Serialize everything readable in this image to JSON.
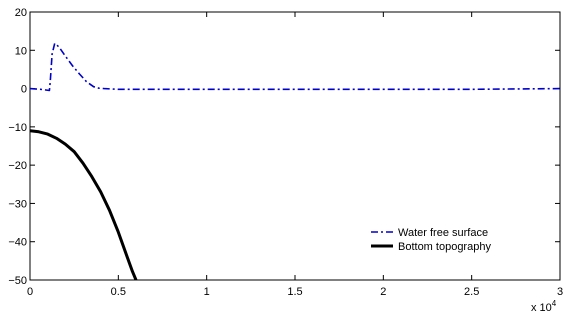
{
  "chart_data": {
    "type": "line",
    "title": "",
    "xlabel": "",
    "ylabel": "",
    "xlim": [
      0,
      30000
    ],
    "ylim": [
      -50,
      20
    ],
    "x_multiplier_label": {
      "base": "x 10",
      "exponent": "4"
    },
    "x_ticks": [
      0,
      5000,
      10000,
      15000,
      20000,
      25000,
      30000
    ],
    "x_tick_labels": [
      "0",
      "0.5",
      "1",
      "1.5",
      "2",
      "2.5",
      "3"
    ],
    "y_ticks": [
      -50,
      -40,
      -30,
      -20,
      -10,
      0,
      10,
      20
    ],
    "y_tick_labels": [
      "−50",
      "−40",
      "−30",
      "−20",
      "−10",
      "0",
      "10",
      "20"
    ],
    "grid": false,
    "legend_position": "bottom-right",
    "series": [
      {
        "name": "Water free surface",
        "color": "#0000cc",
        "line_style": "dash-dot",
        "x": [
          0,
          600,
          1100,
          1150,
          1250,
          1400,
          1500,
          1700,
          2000,
          2400,
          2800,
          3200,
          3600,
          3900,
          4200,
          5000,
          6000,
          8000,
          10000,
          15000,
          20000,
          25000,
          30000
        ],
        "y": [
          0,
          -0.2,
          -0.5,
          2,
          9,
          11.8,
          11.5,
          10.5,
          8.5,
          6,
          3.8,
          1.8,
          0.5,
          0.1,
          0,
          -0.2,
          -0.2,
          -0.2,
          -0.2,
          -0.2,
          -0.2,
          -0.2,
          0
        ]
      },
      {
        "name": "Bottom topography",
        "color": "#000000",
        "line_style": "solid",
        "x": [
          0,
          500,
          1000,
          1500,
          2000,
          2500,
          3000,
          3500,
          4000,
          4500,
          5000,
          5500,
          5800,
          6000
        ],
        "y": [
          -11,
          -11.3,
          -11.9,
          -13,
          -14.5,
          -16.5,
          -19.5,
          -23,
          -27,
          -31.8,
          -37.5,
          -44,
          -47.8,
          -50
        ]
      }
    ]
  }
}
